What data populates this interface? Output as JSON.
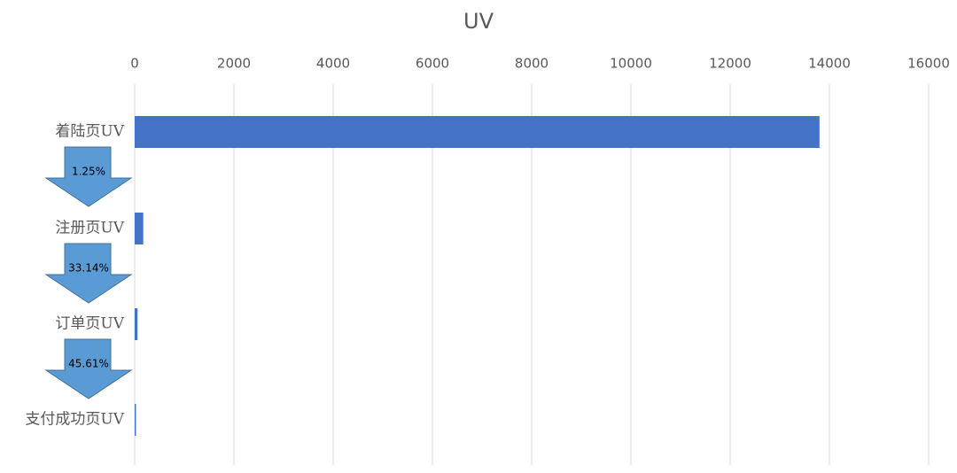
{
  "chart_data": {
    "type": "hbar",
    "title": "UV",
    "categories": [
      "着陆页UV",
      "注册页UV",
      "订单页UV",
      "支付成功页UV"
    ],
    "values": [
      13800,
      172,
      57,
      26
    ],
    "color": "#4472c4",
    "xlim": [
      0,
      16000
    ],
    "xticks": [
      0,
      2000,
      4000,
      6000,
      8000,
      10000,
      12000,
      14000,
      16000
    ],
    "grid": true,
    "annotations": [
      "1.25%",
      "33.14%",
      "45.61%"
    ],
    "annotation_color": "#5b9bd5"
  }
}
